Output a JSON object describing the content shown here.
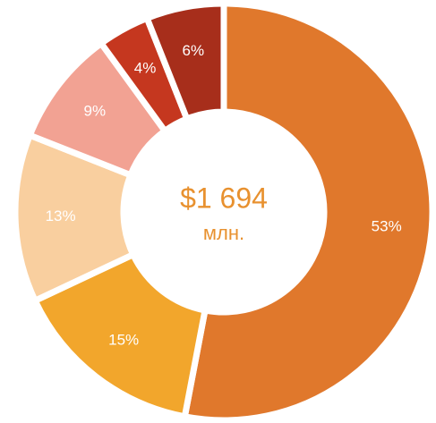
{
  "chart_data": {
    "type": "donut",
    "title": "$1 694",
    "subtitle": "млн.",
    "values": [
      53,
      15,
      13,
      9,
      4,
      6
    ],
    "value_labels": [
      "53%",
      "15%",
      "13%",
      "9%",
      "4%",
      "6%"
    ],
    "colors": [
      "#e0782c",
      "#f2a62c",
      "#f9cf9f",
      "#f2a293",
      "#c5371f",
      "#a72e1b"
    ]
  }
}
